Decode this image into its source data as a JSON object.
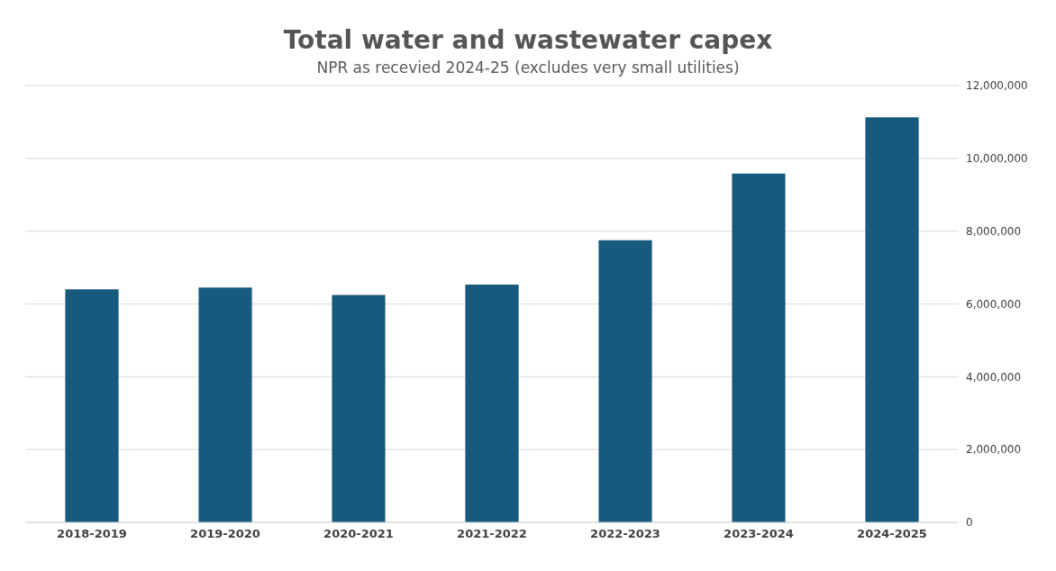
{
  "chart_data": {
    "type": "bar",
    "title": "Total water and wastewater capex",
    "subtitle": "NPR as recevied 2024-25 (excludes very small utilities)",
    "categories": [
      "2018-2019",
      "2019-2020",
      "2020-2021",
      "2021-2022",
      "2022-2023",
      "2023-2024",
      "2024-2025"
    ],
    "values": [
      6400000,
      6450000,
      6250000,
      6530000,
      7750000,
      9580000,
      11130000
    ],
    "color": "#165a7e",
    "ylim": [
      0,
      12000000
    ],
    "yticks": [
      {
        "value": 0,
        "label": "0"
      },
      {
        "value": 2000000,
        "label": "2,000,000"
      },
      {
        "value": 4000000,
        "label": "4,000,000"
      },
      {
        "value": 6000000,
        "label": "6,000,000"
      },
      {
        "value": 8000000,
        "label": "8,000,000"
      },
      {
        "value": 10000000,
        "label": "10,000,000"
      },
      {
        "value": 12000000,
        "label": "12,000,000"
      }
    ],
    "grid": "y"
  }
}
